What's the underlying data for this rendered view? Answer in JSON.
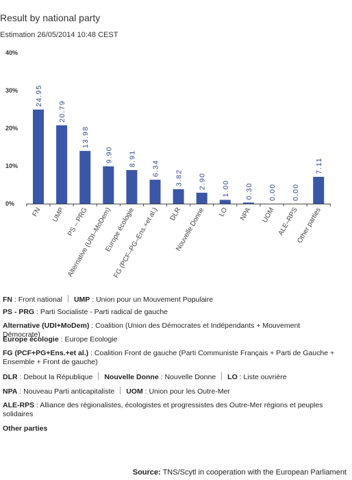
{
  "header": {
    "title": "Result by national party",
    "subtitle": "Estimation 26/05/2014 10:48 CEST"
  },
  "chart_data": {
    "type": "bar",
    "categories": [
      "FN",
      "UMP",
      "PS – PRG",
      "Alternative (UDI–MoDem)",
      "Europe écologie",
      "FG (PCF–PG–Ens.+et al.)",
      "DLR",
      "Nouvelle Donne",
      "LO",
      "NPA",
      "UOM",
      "ALE–RPS",
      "Other parties"
    ],
    "values": [
      24.95,
      20.79,
      13.98,
      9.9,
      8.91,
      6.34,
      3.82,
      2.9,
      1.0,
      0.3,
      0.0,
      0.0,
      7.11
    ],
    "value_labels": [
      "24.95",
      "20.79",
      "13.98",
      "9.90",
      "8.91",
      "6.34",
      "3.82",
      "2.90",
      "1.00",
      "0.30",
      "0.00",
      "0.00",
      "7.11"
    ],
    "y_ticks": [
      0,
      10,
      20,
      30,
      40
    ],
    "y_tick_labels": [
      "0%",
      "10%",
      "20%",
      "30%",
      "40%"
    ],
    "ylim": [
      0,
      40
    ],
    "grid": false,
    "bar_color": "#3a56a6"
  },
  "legend": {
    "rows": [
      [
        {
          "abbr": "FN",
          "desc": " : Front national"
        },
        {
          "abbr": "UMP",
          "desc": " : Union pour un Mouvement Populaire"
        }
      ],
      [
        {
          "abbr": "PS - PRG",
          "desc": " : Parti Socialiste - Parti radical de gauche"
        }
      ],
      [
        {
          "abbr": "Alternative (UDI+MoDem)",
          "desc": " : Coalition (Union des Démocrates et Indépendants + Mouvement Démocrate)"
        }
      ],
      [
        {
          "abbr": "Europe écologie",
          "desc": " : Europe Ecologie"
        }
      ],
      [
        {
          "abbr": "FG (PCF+PG+Ens.+et al.)",
          "desc": " : Coalition Front de gauche (Parti Communiste Français + Parti de Gauche + Ensemble + Front de gauche)"
        }
      ],
      [
        {
          "abbr": "DLR",
          "desc": " : Debout la République"
        },
        {
          "abbr": "Nouvelle Donne",
          "desc": " : Nouvelle Donne"
        },
        {
          "abbr": "LO",
          "desc": " : Liste ouvrière"
        }
      ],
      [
        {
          "abbr": "NPA",
          "desc": " : Nouveau Parti anticapitaliste"
        },
        {
          "abbr": "UOM",
          "desc": " : Union pour les Outre-Mer"
        }
      ],
      [
        {
          "abbr": "ALE-RPS",
          "desc": " : Alliance des régionalistes, écologistes et progressistes des Outre-Mer régions et peuples solidaires"
        }
      ],
      [
        {
          "abbr": "Other parties",
          "desc": ""
        }
      ]
    ]
  },
  "footer": {
    "source_label": "Source:",
    "source_text": " TNS/Scytl in cooperation with the European Parliament"
  }
}
